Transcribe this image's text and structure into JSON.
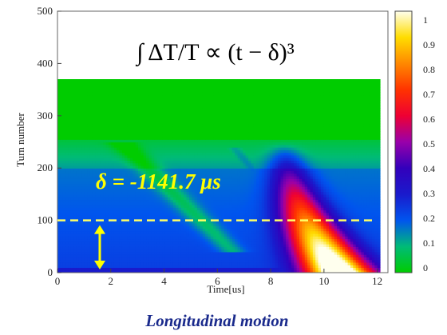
{
  "chart_data": {
    "type": "heatmap",
    "xlabel": "Time[us]",
    "ylabel": "Turn number",
    "xlim": [
      0,
      12.4
    ],
    "ylim": [
      0,
      500
    ],
    "x_ticks": [
      "0",
      "2",
      "4",
      "6",
      "8",
      "10",
      "12"
    ],
    "y_ticks": [
      "0",
      "100",
      "200",
      "300",
      "400",
      "500"
    ],
    "data_turn_range": [
      0,
      370
    ],
    "data_time_range": [
      0,
      12.1
    ],
    "colorbar": {
      "ticks": [
        "0",
        "0.1",
        "0.2",
        "0.3",
        "0.4",
        "0.5",
        "0.6",
        "0.7",
        "0.8",
        "0.9",
        "1"
      ],
      "range": [
        0,
        1
      ],
      "colors": [
        "#00cc00",
        "#00bb77",
        "#0055ee",
        "#1a1acc",
        "#3300bb",
        "#9900aa",
        "#ee0033",
        "#ff3300",
        "#ff8800",
        "#ffdd00",
        "#ffffee"
      ]
    },
    "formula": "∫ ΔT/T ∝ (t − δ)³",
    "annotation": "δ = -1141.7 μs",
    "reference_line_turn": 100,
    "grid": false,
    "colors": {
      "annotation": "#ffff00",
      "reference_line": "#ffff66",
      "arrow": "#ffff00",
      "high_turn_band": "#00dd00"
    }
  },
  "caption": "Longitudinal motion"
}
